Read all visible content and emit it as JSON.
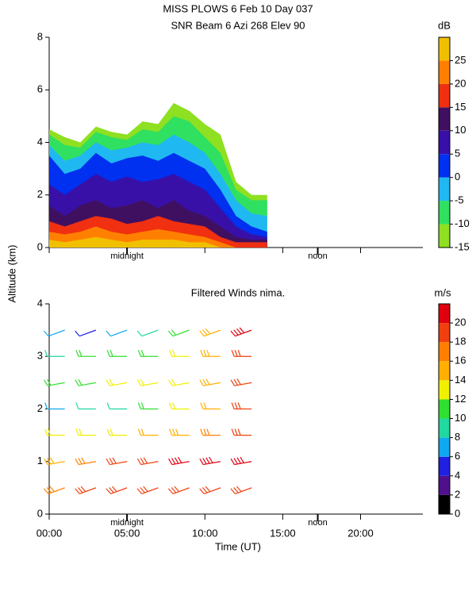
{
  "chart_data": [
    {
      "type": "contour",
      "title": "MISS PLOWS    6 Feb 10 Day 037",
      "subtitle": "SNR Beam 6 Azi 268 Elev 90",
      "colorbar_label": "dB",
      "ylabel": "Altitude (km)",
      "x": [
        0,
        1,
        2,
        3,
        4,
        5,
        6,
        7,
        8,
        9,
        10,
        11,
        12,
        13,
        14
      ],
      "xlim": [
        0,
        24
      ],
      "xticks": [
        0,
        5,
        10,
        15,
        20
      ],
      "ylim": [
        0,
        8
      ],
      "yticks": [
        0,
        2,
        4,
        6,
        8
      ],
      "levels": [
        -15,
        -10,
        -5,
        0,
        5,
        10,
        15,
        20,
        25
      ],
      "level_colors": [
        "#8ee020",
        "#30e060",
        "#20b8f0",
        "#0030f0",
        "#3810a8",
        "#401060",
        "#f03010",
        "#ff8000",
        "#f0c000"
      ],
      "tops": [
        [
          4.5,
          4.2,
          4.0,
          4.6,
          4.4,
          4.3,
          4.8,
          4.7,
          5.5,
          5.2,
          4.7,
          4.3,
          2.5,
          2.0,
          2.0
        ],
        [
          4.3,
          3.9,
          3.8,
          4.4,
          4.2,
          4.1,
          4.5,
          4.4,
          5.0,
          4.8,
          4.2,
          3.6,
          2.2,
          1.8,
          1.8
        ],
        [
          3.9,
          3.3,
          3.5,
          4.0,
          3.7,
          3.8,
          4.0,
          3.9,
          4.3,
          4.0,
          3.6,
          2.8,
          1.8,
          1.3,
          1.2
        ],
        [
          3.5,
          2.8,
          3.0,
          3.6,
          3.2,
          3.4,
          3.5,
          3.3,
          3.6,
          3.3,
          3.0,
          2.2,
          1.2,
          0.8,
          0.6
        ],
        [
          2.4,
          2.0,
          2.4,
          2.8,
          2.5,
          2.7,
          2.5,
          2.6,
          2.8,
          2.5,
          2.2,
          1.5,
          0.8,
          0.5,
          0.4
        ],
        [
          1.6,
          1.2,
          1.6,
          1.8,
          1.5,
          1.6,
          1.8,
          1.5,
          1.8,
          1.4,
          1.2,
          0.8,
          0.4,
          0.3,
          0.3
        ],
        [
          1.0,
          0.8,
          1.0,
          1.2,
          1.1,
          0.9,
          1.0,
          1.2,
          1.0,
          0.9,
          0.8,
          0.4,
          0.2,
          0.2,
          0.2
        ],
        [
          0.6,
          0.5,
          0.6,
          0.8,
          0.6,
          0.5,
          0.6,
          0.7,
          0.6,
          0.5,
          0.4,
          0.2,
          0,
          0,
          0
        ],
        [
          0.3,
          0.2,
          0.3,
          0.4,
          0.3,
          0.2,
          0.3,
          0.3,
          0.3,
          0.2,
          0.2,
          0,
          0,
          0,
          0
        ]
      ],
      "clim": [
        -15,
        30
      ],
      "cticks": [
        -15,
        -10,
        -5,
        0,
        5,
        10,
        15,
        20,
        25
      ],
      "annotations": [
        {
          "text": "midnight",
          "x": 5
        },
        {
          "text": "noon",
          "x": 17.25
        }
      ]
    },
    {
      "type": "barbs",
      "title": "Filtered Winds nima.",
      "colorbar_label": "m/s",
      "xlabel": "Time (UT)",
      "x": [
        1,
        3,
        5,
        7,
        9,
        11,
        13
      ],
      "heights": [
        0.5,
        1,
        1.5,
        2,
        2.5,
        3,
        3.5
      ],
      "speeds": [
        [
          17,
          18,
          19,
          19,
          19,
          18,
          18
        ],
        [
          15,
          17,
          19,
          19,
          20,
          20,
          20
        ],
        [
          12,
          13,
          13,
          14,
          15,
          16,
          19
        ],
        [
          7,
          8,
          8,
          10,
          12,
          14,
          18
        ],
        [
          10,
          11,
          12,
          12,
          13,
          15,
          19
        ],
        [
          9,
          10,
          11,
          11,
          12,
          15,
          19
        ],
        [
          7,
          5,
          7,
          9,
          11,
          15,
          20
        ]
      ],
      "directions": [
        250,
        260,
        270,
        270,
        260,
        270,
        250
      ],
      "xlim": [
        0,
        24
      ],
      "xticks": [
        {
          "value": 0,
          "label": "00:00"
        },
        {
          "value": 5,
          "label": "05:00"
        },
        {
          "value": 10,
          "label": "10:00"
        },
        {
          "value": 15,
          "label": "15:00"
        },
        {
          "value": 20,
          "label": "20:00"
        }
      ],
      "ylim": [
        0,
        4
      ],
      "yticks": [
        0,
        1,
        2,
        3,
        4
      ],
      "clim": [
        0,
        22
      ],
      "cticks": [
        0,
        2,
        4,
        6,
        8,
        10,
        12,
        14,
        16,
        18,
        20
      ],
      "colors": [
        "#000000",
        "#50108c",
        "#2020e0",
        "#10a8f0",
        "#20d8a0",
        "#30e030",
        "#f0f000",
        "#ffb000",
        "#ff8000",
        "#f04010",
        "#e00010"
      ],
      "annotations": [
        {
          "text": "midnight",
          "x": 5
        },
        {
          "text": "noon",
          "x": 17.25
        }
      ]
    }
  ]
}
